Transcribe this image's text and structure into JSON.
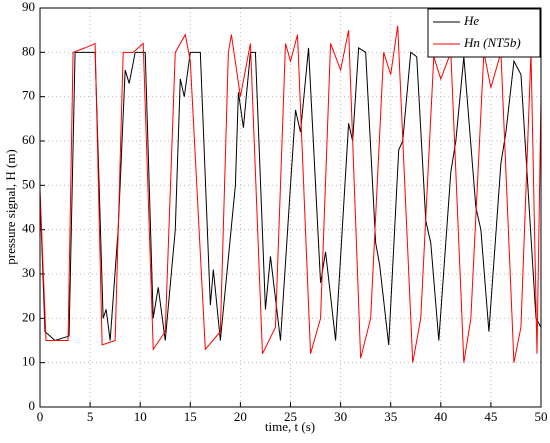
{
  "chart_data": {
    "type": "line",
    "xlabel": "time, t (s)",
    "ylabel": "pressure signal, H (m)",
    "xlim": [
      0,
      50
    ],
    "ylim": [
      0,
      90
    ],
    "xticks": [
      0,
      5,
      10,
      15,
      20,
      25,
      30,
      35,
      40,
      45,
      50
    ],
    "yticks": [
      0,
      10,
      20,
      30,
      40,
      50,
      60,
      70,
      80,
      90
    ],
    "grid": true,
    "legend": "upper right",
    "series": [
      {
        "name": "He",
        "color": "#000000",
        "x": [
          0,
          0.5,
          1.5,
          2.9,
          3.5,
          4.5,
          5.5,
          6.3,
          6.6,
          7.0,
          7.8,
          8.5,
          8.9,
          9.5,
          10.5,
          11.3,
          11.8,
          12.5,
          13.5,
          14.0,
          14.4,
          15.0,
          16.0,
          17.0,
          17.3,
          18.0,
          19.5,
          19.8,
          20.3,
          21.0,
          21.5,
          22.5,
          23.0,
          24.0,
          25.0,
          25.5,
          26.0,
          26.8,
          28.0,
          28.5,
          29.5,
          30.8,
          31.2,
          31.8,
          32.5,
          33.5,
          33.9,
          34.8,
          35.8,
          36.2,
          37.0,
          37.6,
          38.5,
          39.0,
          39.8,
          41.0,
          41.5,
          42.3,
          43.5,
          44.0,
          44.8,
          46.0,
          46.5,
          47.3,
          48.0,
          49.5,
          50
        ],
        "values": [
          48,
          17,
          15,
          16,
          80,
          80,
          80,
          20,
          22,
          15,
          40,
          76,
          73,
          80,
          80,
          20,
          27,
          15,
          40,
          74,
          70,
          80,
          80,
          23,
          31,
          15,
          50,
          71,
          63,
          80,
          80,
          22,
          34,
          15,
          50,
          67,
          62,
          81,
          28,
          35,
          15,
          64,
          60,
          81,
          80,
          37,
          32,
          14,
          58,
          60,
          80,
          79,
          42,
          37,
          15,
          53,
          60,
          79,
          45,
          40,
          17,
          55,
          62,
          78,
          75,
          20,
          18
        ]
      },
      {
        "name": "Hn (NT5b)",
        "color": "#ff0000",
        "x": [
          0,
          0.6,
          1.5,
          2.8,
          3.3,
          4.5,
          5.5,
          6.2,
          7.5,
          8.3,
          9.3,
          10.3,
          11.3,
          12.5,
          13.5,
          14.5,
          15.0,
          16.5,
          18.0,
          18.8,
          19.1,
          20.0,
          21.0,
          22.2,
          23.5,
          24.5,
          25.0,
          25.7,
          27.0,
          28.0,
          29.0,
          30.0,
          30.8,
          32.0,
          33.0,
          34.3,
          35.0,
          35.7,
          37.2,
          38.0,
          39.3,
          40.0,
          41.0,
          42.3,
          43.0,
          44.3,
          45.0,
          46.0,
          47.3,
          48.0,
          49.0,
          49.6,
          50
        ],
        "values": [
          49,
          15,
          15,
          15,
          80,
          81,
          82,
          14,
          15,
          80,
          80,
          82,
          13,
          17,
          80,
          84,
          78,
          13,
          17,
          80,
          84,
          70,
          82,
          12,
          18,
          82,
          78,
          84,
          12,
          20,
          82,
          76,
          85,
          11,
          20,
          80,
          75,
          86,
          10,
          20,
          79,
          74,
          80,
          10,
          20,
          80,
          72,
          80,
          10,
          18,
          80,
          12,
          70
        ]
      }
    ]
  }
}
